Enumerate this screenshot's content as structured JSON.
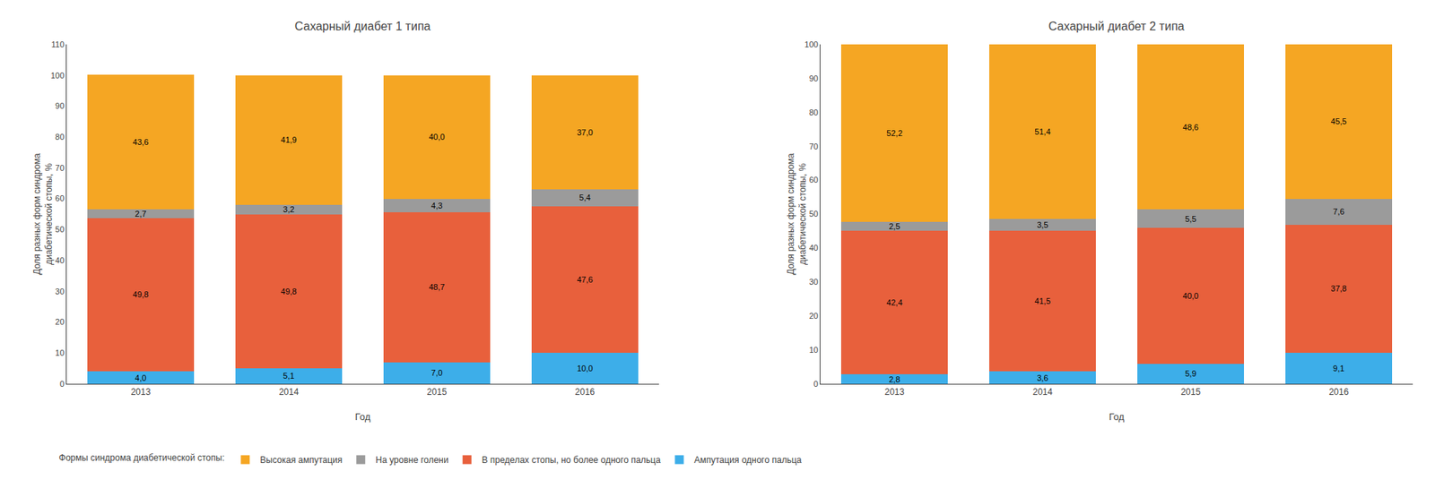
{
  "chart_data": [
    {
      "type": "bar",
      "title": "Сахарный диабет 1 типа",
      "xlabel": "Год",
      "ylabel": "Доля разных форм синдрома\nдиабетической стопы, %",
      "categories": [
        "2013",
        "2014",
        "2015",
        "2016"
      ],
      "stacked": true,
      "data_labels": true,
      "grid": false,
      "legend": "bottom",
      "legend_title": "Формы синдрома диабетической стопы:",
      "ylim": [
        0,
        110
      ],
      "yticks": [
        0,
        10,
        20,
        30,
        40,
        50,
        60,
        70,
        80,
        90,
        100,
        110
      ],
      "series": [
        {
          "name": "Ампутация одного пальца",
          "color": "#3DAEE9",
          "values": [
            4.0,
            5.1,
            7.0,
            10.0
          ],
          "value_labels": [
            "4,0",
            "5,1",
            "7,0",
            "10,0"
          ]
        },
        {
          "name": "В пределах стопы, но более одного пальца",
          "color": "#E8603C",
          "values": [
            49.8,
            49.8,
            48.7,
            47.6
          ],
          "value_labels": [
            "49,8",
            "49,8",
            "48,7",
            "47,6"
          ]
        },
        {
          "name": "На уровне голени",
          "color": "#9B9B9B",
          "values": [
            2.7,
            3.2,
            4.3,
            5.4
          ],
          "value_labels": [
            "2,7",
            "3,2",
            "4,3",
            "5,4"
          ]
        },
        {
          "name": "Высокая ампутация",
          "color": "#F5A623",
          "values": [
            43.6,
            41.9,
            40.0,
            37.0
          ],
          "value_labels": [
            "43,6",
            "41,9",
            "40,0",
            "37,0"
          ]
        }
      ]
    },
    {
      "type": "bar",
      "title": "Сахарный диабет 2 типа",
      "xlabel": "Год",
      "ylabel": "Доля разных форм синдрома\nдиабетической стопы, %",
      "categories": [
        "2013",
        "2014",
        "2015",
        "2016"
      ],
      "stacked": true,
      "data_labels": true,
      "grid": false,
      "legend": "bottom",
      "ylim": [
        0,
        100
      ],
      "yticks": [
        0,
        10,
        20,
        30,
        40,
        50,
        60,
        70,
        80,
        90,
        100
      ],
      "series": [
        {
          "name": "Ампутация одного пальца",
          "color": "#3DAEE9",
          "values": [
            2.8,
            3.6,
            5.9,
            9.1
          ],
          "value_labels": [
            "2,8",
            "3,6",
            "5,9",
            "9,1"
          ]
        },
        {
          "name": "В пределах стопы, но более одного пальца",
          "color": "#E8603C",
          "values": [
            42.4,
            41.5,
            40.0,
            37.8
          ],
          "value_labels": [
            "42,4",
            "41,5",
            "40,0",
            "37,8"
          ]
        },
        {
          "name": "На уровне голени",
          "color": "#9B9B9B",
          "values": [
            2.5,
            3.5,
            5.5,
            7.6
          ],
          "value_labels": [
            "2,5",
            "3,5",
            "5,5",
            "7,6"
          ]
        },
        {
          "name": "Высокая ампутация",
          "color": "#F5A623",
          "values": [
            52.2,
            51.4,
            48.6,
            45.5
          ],
          "value_labels": [
            "52,2",
            "51,4",
            "48,6",
            "45,5"
          ]
        }
      ]
    }
  ]
}
